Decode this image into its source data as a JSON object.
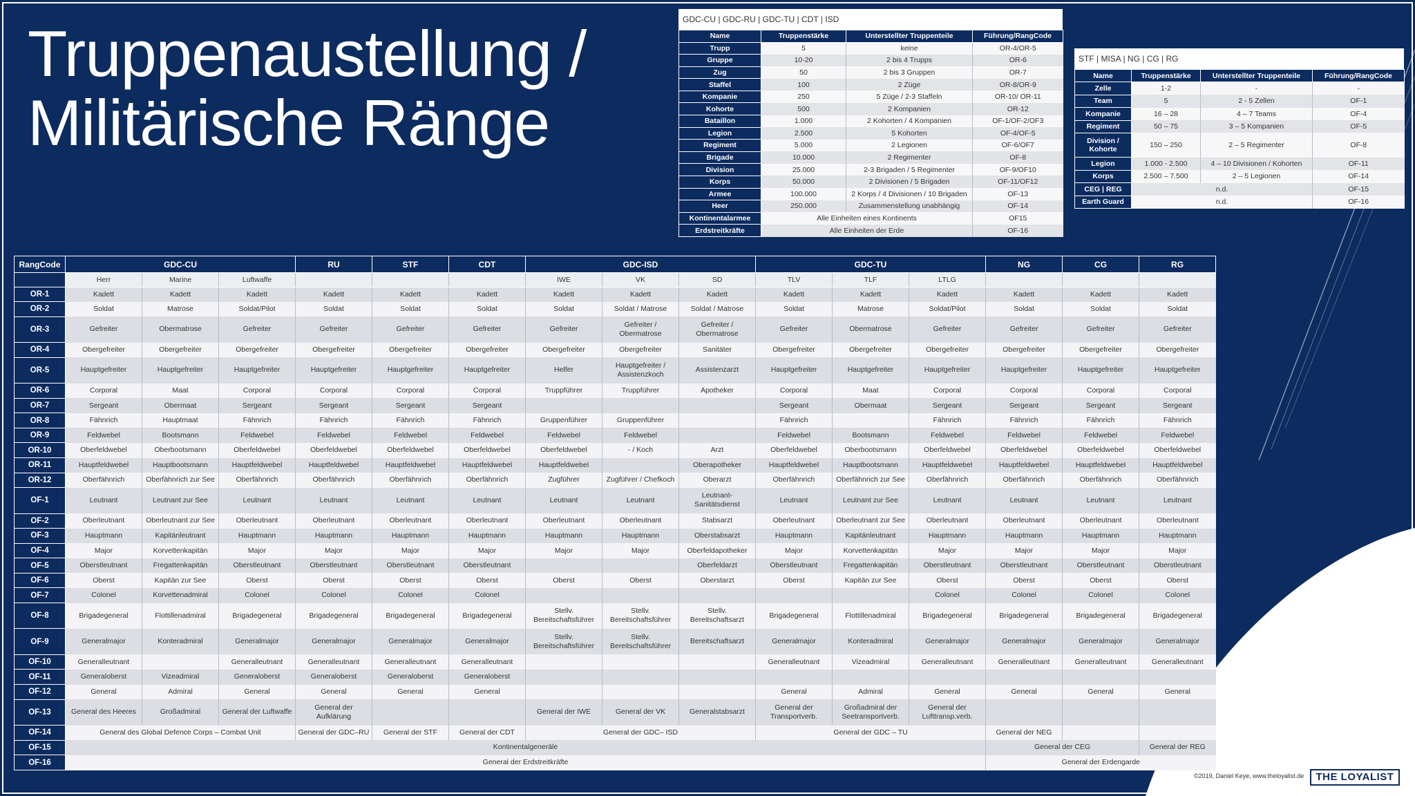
{
  "title": [
    "Truppenaustellung /",
    "Militärische Ränge"
  ],
  "unit_table_main": {
    "title": "GDC-CU | GDC-RU | GDC-TU | CDT | ISD",
    "columns": [
      "Name",
      "Truppenstärke",
      "Unterstellter Truppenteile",
      "Führung/RangCode"
    ],
    "rows": [
      [
        "Trupp",
        "5",
        "keine",
        "OR-4/OR-5"
      ],
      [
        "Gruppe",
        "10-20",
        "2 bis 4 Trupps",
        "OR-6"
      ],
      [
        "Zug",
        "50",
        "2 bis 3 Gruppen",
        "OR-7"
      ],
      [
        "Staffel",
        "100",
        "2 Züge",
        "OR-8/OR-9"
      ],
      [
        "Kompanie",
        "250",
        "5 Züge / 2-3 Staffeln",
        "OR-10/ OR-11"
      ],
      [
        "Kohorte",
        "500",
        "2 Kompanien",
        "OR-12"
      ],
      [
        "Bataillon",
        "1.000",
        "2 Kohorten / 4 Kompanien",
        "OF-1/OF-2/OF3"
      ],
      [
        "Legion",
        "2.500",
        "5 Kohorten",
        "OF-4/OF-5"
      ],
      [
        "Regiment",
        "5.000",
        "2 Legionen",
        "OF-6/OF7"
      ],
      [
        "Brigade",
        "10.000",
        "2 Regimenter",
        "OF-8"
      ],
      [
        "Division",
        "25.000",
        "2-3 Brigaden / 5 Regimenter",
        "OF-9/OF10"
      ],
      [
        "Korps",
        "50.000",
        "2 Divisionen / 5 Brigaden",
        "OF-11/OF12"
      ],
      [
        "Armee",
        "100.000",
        "2 Korps / 4 Divisionen / 10 Brigaden",
        "OF-13"
      ],
      [
        "Heer",
        "250.000",
        "Zusammenstellung unabhängig",
        "OF-14"
      ],
      [
        "Kontinentalarmee",
        {
          "text": "Alle Einheiten eines Kontinents",
          "span": 2
        },
        "OF15"
      ],
      [
        "Erdstreitkräfte",
        {
          "text": "Alle Einheiten der Erde",
          "span": 2
        },
        "OF-16"
      ]
    ]
  },
  "unit_table_stf": {
    "title": "STF | MISA | NG | CG | RG",
    "columns": [
      "Name",
      "Truppenstärke",
      "Unterstellter Truppenteile",
      "Führung/RangCode"
    ],
    "rows": [
      [
        "Zelle",
        "1-2",
        "-",
        "-"
      ],
      [
        "Team",
        "5",
        "2 - 5 Zellen",
        "OF-1"
      ],
      [
        "Kompanie",
        "16 – 28",
        "4 – 7 Teams",
        "OF-4"
      ],
      [
        "Regiment",
        "50 – 75",
        "3 – 5 Kompanien",
        "OF-5"
      ],
      [
        "Division / Kohorte",
        "150 – 250",
        "2 – 5 Regimenter",
        "OF-8"
      ],
      [
        "Legion",
        "1.000 - 2.500",
        "4 – 10 Divisionen / Kohorten",
        "OF-11"
      ],
      [
        "Korps",
        "2.500 – 7.500",
        "2 – 5 Legionen",
        "OF-14"
      ],
      [
        "CEG | REG",
        {
          "text": "n.d.",
          "span": 2
        },
        "OF-15"
      ],
      [
        "Earth Guard",
        {
          "text": "n.d.",
          "span": 2
        },
        "OF-16"
      ]
    ]
  },
  "rank_table": {
    "header": [
      "RangCode",
      {
        "text": "GDC-CU",
        "span": 3
      },
      "RU",
      "STF",
      "CDT",
      {
        "text": "GDC-ISD",
        "span": 3
      },
      {
        "text": "GDC-TU",
        "span": 3
      },
      "NG",
      "CG",
      "RG"
    ],
    "subheader": [
      null,
      "Herr",
      "Marine",
      "Luftwaffe",
      null,
      null,
      null,
      "IWE",
      "VK",
      "SD",
      "TLV",
      "TLF",
      "LTLG",
      null,
      null,
      null
    ],
    "rows": [
      {
        "code": "OR-1",
        "cells": [
          "Kadett",
          "Kadett",
          "Kadett",
          "Kadett",
          "Kadett",
          "Kadett",
          "Kadett",
          "Kadett",
          "Kadett",
          "Kadett",
          "Kadett",
          "Kadett",
          "Kadett",
          "Kadett",
          "Kadett"
        ]
      },
      {
        "code": "OR-2",
        "cells": [
          "Soldat",
          "Matrose",
          "Soldat/Pilot",
          "Soldat",
          "Soldat",
          "Soldat",
          "Soldat",
          "Soldat / Matrose",
          "Soldat / Matrose",
          "Soldat",
          "Matrose",
          "Soldat/Pilot",
          "Soldat",
          "Soldat",
          "Soldat"
        ]
      },
      {
        "code": "OR-3",
        "cells": [
          "Gefreiter",
          "Obermatrose",
          "Gefreiter",
          "Gefreiter",
          "Gefreiter",
          "Gefreiter",
          "Gefreiter",
          "Gefreiter / Obermatrose",
          "Gefreiter / Obermatrose",
          "Gefreiter",
          "Obermatrose",
          "Gefreiter",
          "Gefreiter",
          "Gefreiter",
          "Gefreiter"
        ]
      },
      {
        "code": "OR-4",
        "cells": [
          "Obergefreiter",
          "Obergefreiter",
          "Obergefreiter",
          "Obergefreiter",
          "Obergefreiter",
          "Obergefreiter",
          "Obergefreiter",
          "Obergefreiter",
          "Sanitäter",
          "Obergefreiter",
          "Obergefreiter",
          "Obergefreiter",
          "Obergefreiter",
          "Obergefreiter",
          "Obergefreiter"
        ]
      },
      {
        "code": "OR-5",
        "cells": [
          "Hauptgefreiter",
          "Hauptgefreiter",
          "Hauptgefreiter",
          "Hauptgefreiter",
          "Hauptgefreiter",
          "Hauptgefreiter",
          "Helfer",
          "Hauptgefreiter / Assistenzkoch",
          "Assistenzarzt",
          "Hauptgefreiter",
          "Hauptgefreiter",
          "Hauptgefreiter",
          "Hauptgefreiter",
          "Hauptgefreiter",
          "Hauptgefreiter"
        ]
      },
      {
        "code": "OR-6",
        "cells": [
          "Corporal",
          "Maat",
          "Corporal",
          "Corporal",
          "Corporal",
          "Corporal",
          "Truppführer",
          "Truppführer",
          "Apotheker",
          "Corporal",
          "Maat",
          "Corporal",
          "Corporal",
          "Corporal",
          "Corporal"
        ]
      },
      {
        "code": "OR-7",
        "cells": [
          "Sergeant",
          "Obermaat",
          "Sergeant",
          "Sergeant",
          "Sergeant",
          "Sergeant",
          null,
          null,
          null,
          "Sergeant",
          "Obermaat",
          "Sergeant",
          "Sergeant",
          "Sergeant",
          "Sergeant"
        ]
      },
      {
        "code": "OR-8",
        "cells": [
          "Fähnrich",
          "Hauptmaat",
          "Fähnrich",
          "Fähnrich",
          "Fähnrich",
          "Fähnrich",
          "Gruppenführer",
          "Gruppenführer",
          null,
          "Fähnrich",
          null,
          "Fähnrich",
          "Fähnrich",
          "Fähnrich",
          "Fähnrich"
        ]
      },
      {
        "code": "OR-9",
        "cells": [
          "Feldwebel",
          "Bootsmann",
          "Feldwebel",
          "Feldwebel",
          "Feldwebel",
          "Feldwebel",
          "Feldwebel",
          "Feldwebel",
          null,
          "Feldwebel",
          "Bootsmann",
          "Feldwebel",
          "Feldwebel",
          "Feldwebel",
          "Feldwebel"
        ]
      },
      {
        "code": "OR-10",
        "cells": [
          "Oberfeldwebel",
          "Oberbootsmann",
          "Oberfeldwebel",
          "Oberfeldwebel",
          "Oberfeldwebel",
          "Oberfeldwebel",
          "Oberfeldwebel",
          "- / Koch",
          "Arzt",
          "Oberfeldwebel",
          "Oberbootsmann",
          "Oberfeldwebel",
          "Oberfeldwebel",
          "Oberfeldwebel",
          "Oberfeldwebel"
        ]
      },
      {
        "code": "OR-11",
        "cells": [
          "Hauptfeldwebel",
          "Hauptbootsmann",
          "Hauptfeldwebel",
          "Hauptfeldwebel",
          "Hauptfeldwebel",
          "Hauptfeldwebel",
          "Hauptfeldwebel",
          null,
          "Oberapotheker",
          "Hauptfeldwebel",
          "Hauptbootsmann",
          "Hauptfeldwebel",
          "Hauptfeldwebel",
          "Hauptfeldwebel",
          "Hauptfeldwebel"
        ]
      },
      {
        "code": "OR-12",
        "cells": [
          "Oberfähnrich",
          "Oberfähnrich zur See",
          "Oberfähnrich",
          "Oberfähnrich",
          "Oberfähnrich",
          "Oberfähnrich",
          "Zugführer",
          "Zugführer / Chefkoch",
          "Oberarzt",
          "Oberfähnrich",
          "Oberfähnrich zur See",
          "Oberfähnrich",
          "Oberfähnrich",
          "Oberfähnrich",
          "Oberfähnrich"
        ]
      },
      {
        "code": "OF-1",
        "cells": [
          "Leutnant",
          "Leutnant zur See",
          "Leutnant",
          "Leutnant",
          "Leutnant",
          "Leutnant",
          "Leutnant",
          "Leutnant",
          "Leutnant-Sanitätsdienst",
          "Leutnant",
          "Leutnant zur See",
          "Leutnant",
          "Leutnant",
          "Leutnant",
          "Leutnant"
        ]
      },
      {
        "code": "OF-2",
        "cells": [
          "Oberleutnant",
          "Oberleutnant zur See",
          "Oberleutnant",
          "Oberleutnant",
          "Oberleutnant",
          "Oberleutnant",
          "Oberleutnant",
          "Oberleutnant",
          "Stabsarzt",
          "Oberleutnant",
          "Oberleutnant zur See",
          "Oberleutnant",
          "Oberleutnant",
          "Oberleutnant",
          "Oberleutnant"
        ]
      },
      {
        "code": "OF-3",
        "cells": [
          "Hauptmann",
          "Kapitänleutnant",
          "Hauptmann",
          "Hauptmann",
          "Hauptmann",
          "Hauptmann",
          "Hauptmann",
          "Hauptmann",
          "Oberstabsarzt",
          "Hauptmann",
          "Kapitänleutnant",
          "Hauptmann",
          "Hauptmann",
          "Hauptmann",
          "Hauptmann"
        ]
      },
      {
        "code": "OF-4",
        "cells": [
          "Major",
          "Korvettenkapitän",
          "Major",
          "Major",
          "Major",
          "Major",
          "Major",
          "Major",
          "Oberfeldapotheker",
          "Major",
          "Korvettenkapitän",
          "Major",
          "Major",
          "Major",
          "Major"
        ]
      },
      {
        "code": "OF-5",
        "cells": [
          "Oberstleutnant",
          "Fregattenkapitän",
          "Oberstleutnant",
          "Oberstleutnant",
          "Oberstleutnant",
          "Oberstleutnant",
          null,
          null,
          "Oberfeldarzt",
          "Oberstleutnant",
          "Fregattenkapitän",
          "Oberstleutnant",
          "Oberstleutnant",
          "Oberstleutnant",
          "Oberstleutnant"
        ]
      },
      {
        "code": "OF-6",
        "cells": [
          "Oberst",
          "Kapitän zur See",
          "Oberst",
          "Oberst",
          "Oberst",
          "Oberst",
          "Oberst",
          "Oberst",
          "Oberstarzt",
          "Oberst",
          "Kapitän zur See",
          "Oberst",
          "Oberst",
          "Oberst",
          "Oberst"
        ]
      },
      {
        "code": "OF-7",
        "cells": [
          "Colonel",
          "Korvettenadmiral",
          "Colonel",
          "Colonel",
          "Colonel",
          "Colonel",
          null,
          null,
          null,
          null,
          null,
          "Colonel",
          "Colonel",
          "Colonel",
          "Colonel"
        ]
      },
      {
        "code": "OF-8",
        "cells": [
          "Brigadegeneral",
          "Flottillenadmiral",
          "Brigadegeneral",
          "Brigadegeneral",
          "Brigadegeneral",
          "Brigadegeneral",
          "Stellv. Bereitschaftsführer",
          "Stellv. Bereitschaftsführer",
          "Stellv. Bereitschaftsarzt",
          "Brigadegeneral",
          "Flottillenadmiral",
          "Brigadegeneral",
          "Brigadegeneral",
          "Brigadegeneral",
          "Brigadegeneral"
        ]
      },
      {
        "code": "OF-9",
        "cells": [
          "Generalmajor",
          "Konteradmiral",
          "Generalmajor",
          "Generalmajor",
          "Generalmajor",
          "Generalmajor",
          "Stellv. Bereitschaftsführer",
          "Stellv. Bereitschaftsführer",
          "Bereitschaftsarzt",
          "Generalmajor",
          "Konteradmiral",
          "Generalmajor",
          "Generalmajor",
          "Generalmajor",
          "Generalmajor"
        ]
      },
      {
        "code": "OF-10",
        "cells": [
          "Generalleutnant",
          null,
          "Generalleutnant",
          "Generalleutnant",
          "Generalleutnant",
          "Generalleutnant",
          null,
          null,
          null,
          "Generalleutnant",
          "Vizeadmiral",
          "Generalleutnant",
          "Generalleutnant",
          "Generalleutnant",
          "Generalleutnant"
        ]
      },
      {
        "code": "OF-11",
        "cells": [
          "Generaloberst",
          "Vizeadmiral",
          "Generaloberst",
          "Generaloberst",
          "Generaloberst",
          "Generaloberst",
          null,
          null,
          null,
          null,
          null,
          null,
          null,
          null,
          null
        ]
      },
      {
        "code": "OF-12",
        "cells": [
          "General",
          "Admiral",
          "General",
          "General",
          "General",
          "General",
          null,
          null,
          null,
          "General",
          "Admiral",
          "General",
          "General",
          "General",
          "General"
        ]
      },
      {
        "code": "OF-13",
        "cells": [
          "General des Heeres",
          "Großadmiral",
          "General der Luftwaffe",
          "General der Aufklärung",
          null,
          null,
          "General der IWE",
          "General der VK",
          "Generalstabsarzt",
          "General der Transportverb.",
          "Großadmiral der Seetransportverb.",
          "General der Lufttransp.verb.",
          null,
          null,
          null
        ]
      },
      {
        "code": "OF-14",
        "cells": [
          {
            "text": "General des Global Defence Corps – Combat Unit",
            "span": 3
          },
          "General der GDC–RU",
          "General der STF",
          "General der CDT",
          {
            "text": "General der GDC– ISD",
            "span": 3
          },
          {
            "text": "General der GDC – TU",
            "span": 3
          },
          "General der NEG",
          null,
          null
        ]
      },
      {
        "code": "OF-15",
        "cells": [
          {
            "text": "Kontinentalgeneräle",
            "span": 12
          },
          {
            "text": "General der CEG",
            "span": 2
          },
          "General der REG"
        ]
      },
      {
        "code": "OF-16",
        "cells": [
          {
            "text": "General der Erdstreitkräfte",
            "span": 12
          },
          {
            "text": "General der Erdengarde",
            "span": 3
          }
        ]
      }
    ]
  },
  "footer": "©2019, Daniel Keye, www.theloyalist.de",
  "logo": "THE LOYALIST"
}
